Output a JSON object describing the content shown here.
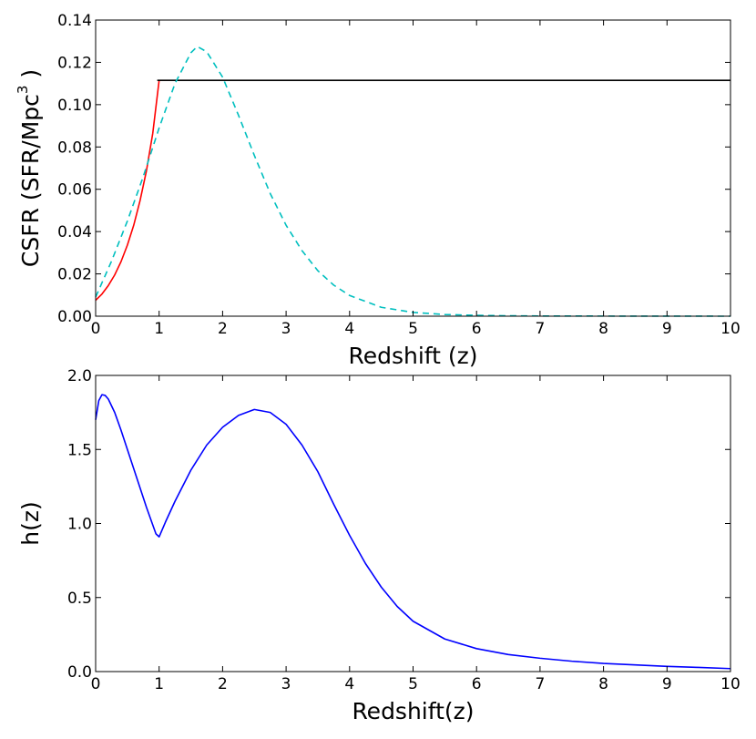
{
  "chart_data": [
    {
      "type": "line",
      "xlabel": "Redshift (z)",
      "ylabel_main": "CSFR (SFR/Mpc",
      "ylabel_sup": "3",
      "ylabel_tail": " )",
      "xlim": [
        0,
        10
      ],
      "ylim": [
        0,
        0.14
      ],
      "xticks": [
        0,
        1,
        2,
        3,
        4,
        5,
        6,
        7,
        8,
        9,
        10
      ],
      "xtick_labels": [
        "0",
        "1",
        "2",
        "3",
        "4",
        "5",
        "6",
        "7",
        "8",
        "9",
        "10"
      ],
      "yticks": [
        0,
        0.02,
        0.04,
        0.06,
        0.08,
        0.1,
        0.12,
        0.14
      ],
      "ytick_labels": [
        "0.00",
        "0.02",
        "0.04",
        "0.06",
        "0.08",
        "0.10",
        "0.12",
        "0.14"
      ],
      "grid": false,
      "series": [
        {
          "color": "#ff0000",
          "style": "solid",
          "x": [
            0,
            0.1,
            0.2,
            0.3,
            0.4,
            0.5,
            0.6,
            0.7,
            0.8,
            0.9,
            1.0
          ],
          "y": [
            0.0075,
            0.0105,
            0.0145,
            0.0195,
            0.0258,
            0.0336,
            0.043,
            0.0547,
            0.0687,
            0.0865,
            0.1115
          ]
        },
        {
          "color": "#000000",
          "style": "solid",
          "x": [
            0.97,
            1.0,
            10
          ],
          "y": [
            0.1115,
            0.1115,
            0.1115
          ]
        },
        {
          "color": "#00bfbf",
          "style": "dashed",
          "x": [
            0,
            0.25,
            0.5,
            0.75,
            1.0,
            1.25,
            1.5,
            1.6,
            1.75,
            2.0,
            2.25,
            2.5,
            2.75,
            3.0,
            3.25,
            3.5,
            3.75,
            4.0,
            4.5,
            5.0,
            5.5,
            6.0,
            6.5,
            7.0,
            8.0,
            9.0,
            10.0
          ],
          "y": [
            0.009,
            0.026,
            0.045,
            0.066,
            0.089,
            0.11,
            0.1245,
            0.1275,
            0.125,
            0.113,
            0.095,
            0.076,
            0.058,
            0.043,
            0.031,
            0.0215,
            0.0147,
            0.0098,
            0.0042,
            0.0018,
            0.0008,
            0.0004,
            0.0002,
            0.0001,
            5e-05,
            2e-05,
            0.0
          ]
        }
      ]
    },
    {
      "type": "line",
      "xlabel": "Redshift(z)",
      "ylabel": "h(z)",
      "xlim": [
        0,
        10
      ],
      "ylim": [
        0,
        2.0
      ],
      "xticks": [
        0,
        1,
        2,
        3,
        4,
        5,
        6,
        7,
        8,
        9,
        10
      ],
      "xtick_labels": [
        "0",
        "1",
        "2",
        "3",
        "4",
        "5",
        "6",
        "7",
        "8",
        "9",
        "10"
      ],
      "yticks": [
        0,
        0.5,
        1.0,
        1.5,
        2.0
      ],
      "ytick_labels": [
        "0.0",
        "0.5",
        "1.0",
        "1.5",
        "2.0"
      ],
      "grid": false,
      "series": [
        {
          "color": "#0000ff",
          "style": "solid",
          "x": [
            0,
            0.05,
            0.1,
            0.15,
            0.2,
            0.3,
            0.4,
            0.5,
            0.6,
            0.7,
            0.8,
            0.9,
            0.95,
            1.0,
            1.1,
            1.25,
            1.5,
            1.75,
            2.0,
            2.25,
            2.5,
            2.75,
            3.0,
            3.25,
            3.5,
            3.75,
            4.0,
            4.25,
            4.5,
            4.75,
            5.0,
            5.5,
            6.0,
            6.5,
            7.0,
            7.5,
            8.0,
            8.5,
            9.0,
            9.5,
            10.0
          ],
          "y": [
            1.7,
            1.83,
            1.87,
            1.865,
            1.84,
            1.75,
            1.63,
            1.5,
            1.37,
            1.24,
            1.11,
            0.99,
            0.93,
            0.91,
            1.01,
            1.15,
            1.36,
            1.53,
            1.65,
            1.73,
            1.77,
            1.75,
            1.67,
            1.53,
            1.35,
            1.13,
            0.92,
            0.73,
            0.57,
            0.44,
            0.34,
            0.22,
            0.155,
            0.115,
            0.09,
            0.07,
            0.055,
            0.045,
            0.035,
            0.028,
            0.02
          ]
        }
      ]
    }
  ]
}
